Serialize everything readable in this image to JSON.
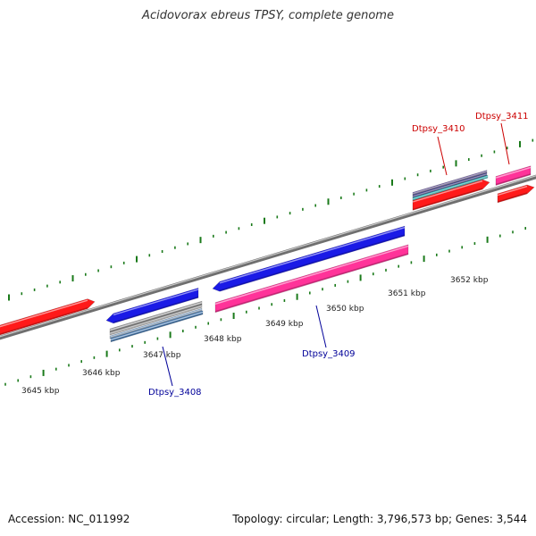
{
  "title": "Acidovorax ebreus TPSY, complete genome",
  "footer": {
    "accession": "Accession: NC_011992",
    "summary": "Topology: circular; Length: 3,796,573 bp; Genes: 3,544"
  },
  "colors": {
    "forward_label": "#cc0000",
    "reverse_label": "#000099",
    "tick": "#1a7a1a",
    "backbone": "#8a8a8a",
    "red": "#ff1a1a",
    "blue": "#1a1ae6",
    "pink": "#ff3399",
    "gray": "#bbbbbb",
    "steel": "#4a7fb8",
    "purple": "#7a6aa8",
    "cyan": "#33cccc"
  },
  "scale": {
    "labels": [
      "3645 kbp",
      "3646 kbp",
      "3647 kbp",
      "3648 kbp",
      "3649 kbp",
      "3650 kbp",
      "3651 kbp",
      "3652 kbp"
    ]
  },
  "genes": [
    {
      "name": "Dtpsy_3408",
      "strand": "reverse"
    },
    {
      "name": "Dtpsy_3409",
      "strand": "reverse"
    },
    {
      "name": "Dtpsy_3410",
      "strand": "forward"
    },
    {
      "name": "Dtpsy_3411",
      "strand": "forward"
    }
  ]
}
